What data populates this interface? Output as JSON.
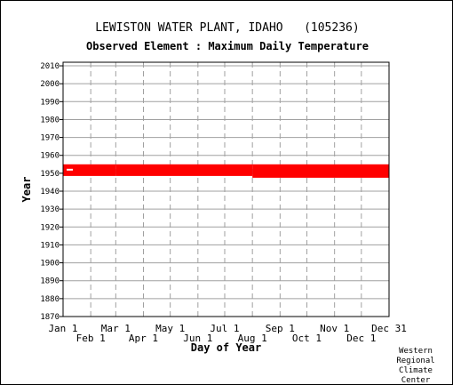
{
  "chart_data": {
    "type": "bar",
    "title": "LEWISTON WATER PLANT, IDAHO   (105236)",
    "subtitle": "Observed Element : Maximum Daily Temperature",
    "xlabel": "Day of Year",
    "ylabel": "Year",
    "xlim": [
      1,
      366
    ],
    "ylim": [
      1870,
      2012
    ],
    "y_ticks": [
      1870,
      1880,
      1890,
      1900,
      1910,
      1920,
      1930,
      1940,
      1950,
      1960,
      1970,
      1980,
      1990,
      2000,
      2010
    ],
    "x_ticks_upper": [
      {
        "label": "Jan 1",
        "day": 1
      },
      {
        "label": "Mar 1",
        "day": 60
      },
      {
        "label": "May 1",
        "day": 121
      },
      {
        "label": "Jul 1",
        "day": 182
      },
      {
        "label": "Sep 1",
        "day": 244
      },
      {
        "label": "Nov 1",
        "day": 305
      },
      {
        "label": "Dec 31",
        "day": 366
      }
    ],
    "x_ticks_lower": [
      {
        "label": "Feb 1",
        "day": 32
      },
      {
        "label": "Apr 1",
        "day": 91
      },
      {
        "label": "Jun 1",
        "day": 152
      },
      {
        "label": "Aug 1",
        "day": 213
      },
      {
        "label": "Oct 1",
        "day": 274
      },
      {
        "label": "Dec 1",
        "day": 335
      }
    ],
    "x_gridlines": [
      32,
      60,
      91,
      121,
      152,
      182,
      213,
      244,
      274,
      305,
      335
    ],
    "grid": true,
    "series": [
      {
        "color": "#ff0000",
        "segments": [
          {
            "x_start": 1,
            "x_end": 60,
            "y_start": 1948.5,
            "y_end": 1955
          },
          {
            "x_start": 60,
            "x_end": 213,
            "y_start": 1948.5,
            "y_end": 1955
          },
          {
            "x_start": 213,
            "x_end": 366,
            "y_start": 1947.5,
            "y_end": 1955
          }
        ],
        "gaps": [
          {
            "x_start": 5,
            "x_end": 12,
            "y": 1952
          }
        ]
      }
    ]
  },
  "credit": [
    "Western",
    "Regional",
    "Climate",
    "Center"
  ]
}
